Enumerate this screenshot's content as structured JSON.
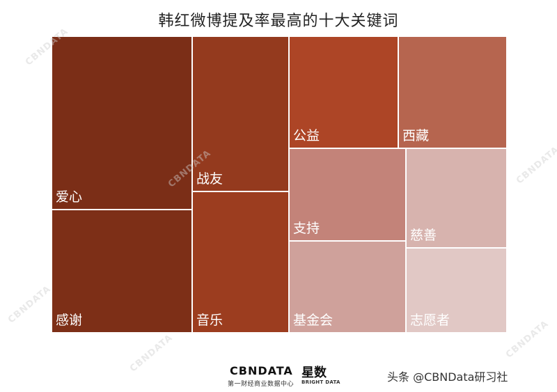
{
  "chart_data": {
    "type": "treemap",
    "title": "韩红微博提及率最高的十大关键词",
    "items": [
      {
        "label": "爱心",
        "color": "#7b2e17"
      },
      {
        "label": "感谢",
        "color": "#7d2f17"
      },
      {
        "label": "战友",
        "color": "#943a1e"
      },
      {
        "label": "音乐",
        "color": "#9c3d1f"
      },
      {
        "label": "公益",
        "color": "#ad4526"
      },
      {
        "label": "西藏",
        "color": "#b6654f"
      },
      {
        "label": "支持",
        "color": "#c38379"
      },
      {
        "label": "基金会",
        "color": "#cfa19b"
      },
      {
        "label": "慈善",
        "color": "#d7b3ae"
      },
      {
        "label": "志愿者",
        "color": "#e1c8c5"
      }
    ]
  },
  "footer": {
    "brand_primary": "CBNDATA",
    "brand_primary_sub": "第一财经商业数据中心",
    "brand_secondary": "星数",
    "brand_secondary_sub": "BRIGHT DATA",
    "attribution": "头条 @CBNData研习社"
  },
  "watermark_text": "CBNDATA"
}
